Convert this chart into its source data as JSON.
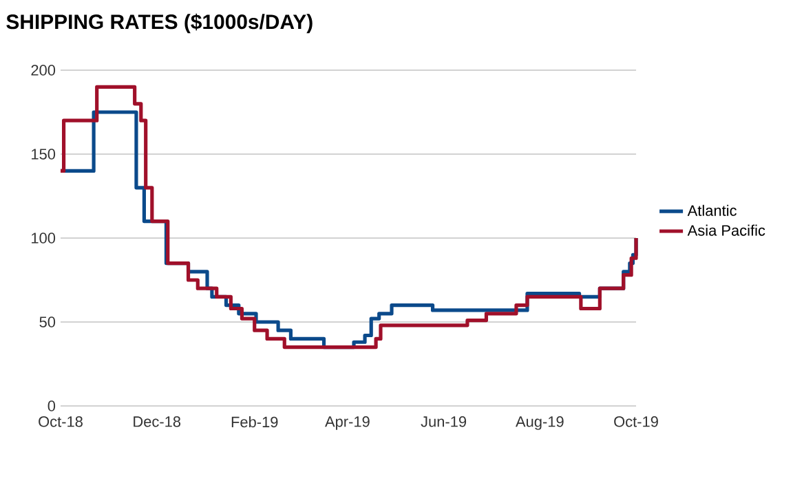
{
  "chart_data": {
    "type": "step",
    "title": "SHIPPING RATES ($1000s/DAY)",
    "xlim": [
      "2018-10-01",
      "2019-10-01"
    ],
    "ylim": [
      0,
      200
    ],
    "xticks": [
      {
        "value": "2018-10-01",
        "label": "Oct-18"
      },
      {
        "value": "2018-12-01",
        "label": "Dec-18"
      },
      {
        "value": "2019-02-01",
        "label": "Feb-19"
      },
      {
        "value": "2019-04-01",
        "label": "Apr-19"
      },
      {
        "value": "2019-06-01",
        "label": "Jun-19"
      },
      {
        "value": "2019-08-01",
        "label": "Aug-19"
      },
      {
        "value": "2019-10-01",
        "label": "Oct-19"
      }
    ],
    "yticks": [
      0,
      50,
      100,
      150,
      200
    ],
    "grid": "y",
    "legend": "right",
    "series": [
      {
        "name": "Atlantic",
        "color": "#0b4a8b",
        "x": [
          "2018-10-01",
          "2018-10-22",
          "2018-11-18",
          "2018-11-23",
          "2018-12-07",
          "2018-12-21",
          "2019-01-02",
          "2019-01-05",
          "2019-01-14",
          "2019-01-22",
          "2019-02-02",
          "2019-02-16",
          "2019-02-24",
          "2019-03-17",
          "2019-04-05",
          "2019-04-12",
          "2019-04-16",
          "2019-04-21",
          "2019-04-29",
          "2019-05-25",
          "2019-07-24",
          "2019-08-26",
          "2019-09-08",
          "2019-09-23",
          "2019-09-27",
          "2019-09-29",
          "2019-10-01"
        ],
        "values": [
          140,
          175,
          130,
          110,
          85,
          80,
          70,
          65,
          60,
          55,
          50,
          45,
          40,
          35,
          38,
          42,
          52,
          55,
          60,
          57,
          67,
          65,
          70,
          80,
          85,
          90,
          100
        ]
      },
      {
        "name": "Asia Pacific",
        "color": "#a0102a",
        "x": [
          "2018-10-01",
          "2018-10-03",
          "2018-10-24",
          "2018-11-17",
          "2018-11-21",
          "2018-11-24",
          "2018-11-28",
          "2018-12-08",
          "2018-12-21",
          "2018-12-27",
          "2019-01-08",
          "2019-01-17",
          "2019-01-24",
          "2019-02-01",
          "2019-02-09",
          "2019-02-20",
          "2019-04-19",
          "2019-04-22",
          "2019-06-16",
          "2019-06-28",
          "2019-07-17",
          "2019-07-24",
          "2019-08-27",
          "2019-09-08",
          "2019-09-23",
          "2019-09-28",
          "2019-10-01"
        ],
        "values": [
          140,
          170,
          190,
          180,
          170,
          130,
          110,
          85,
          75,
          70,
          65,
          58,
          52,
          45,
          40,
          35,
          40,
          48,
          51,
          55,
          60,
          65,
          58,
          70,
          78,
          88,
          100
        ]
      }
    ]
  }
}
